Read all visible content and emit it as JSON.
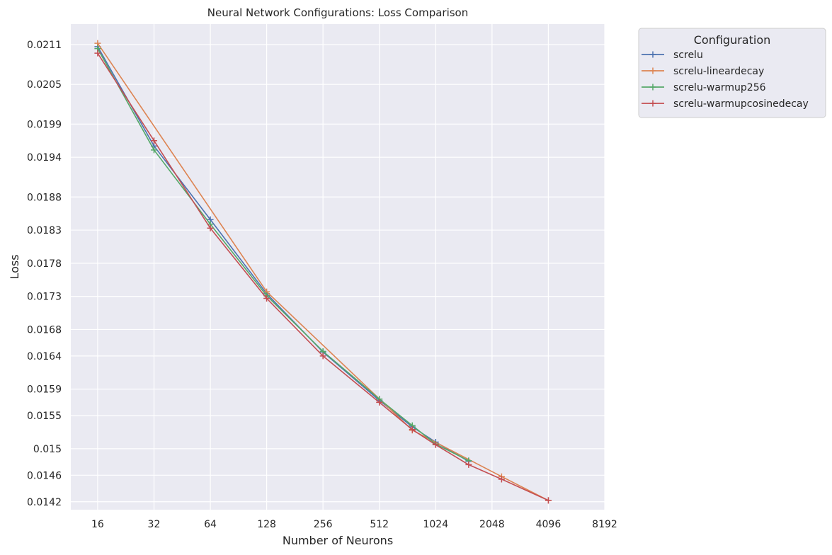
{
  "chart_data": {
    "type": "line",
    "title": "Neural Network Configurations: Loss Comparison",
    "xlabel": "Number of Neurons",
    "ylabel": "Loss",
    "xscale": "log2",
    "xlim": [
      11.5,
      8192
    ],
    "ylim": [
      0.01408,
      0.02141
    ],
    "x_ticks": [
      16,
      32,
      64,
      128,
      256,
      512,
      1024,
      2048,
      4096,
      8192
    ],
    "x_tick_labels": [
      "16",
      "32",
      "64",
      "128",
      "256",
      "512",
      "1024",
      "2048",
      "4096",
      "8192"
    ],
    "y_ticks": [
      0.0142,
      0.0146,
      0.015,
      0.0155,
      0.0159,
      0.0164,
      0.0168,
      0.0173,
      0.0178,
      0.0183,
      0.0188,
      0.0194,
      0.0199,
      0.0205,
      0.0211
    ],
    "y_tick_labels": [
      "0.0142",
      "0.0146",
      "0.015",
      "0.0155",
      "0.0159",
      "0.0164",
      "0.0168",
      "0.0173",
      "0.0178",
      "0.0183",
      "0.0188",
      "0.0194",
      "0.0199",
      "0.0205",
      "0.0211"
    ],
    "grid": true,
    "legend": {
      "title": "Configuration",
      "placement": "outside-top-right"
    },
    "series": [
      {
        "name": "screlu",
        "color": "#4c72b0",
        "x": [
          16,
          32,
          64,
          128,
          256,
          512,
          768,
          1024,
          1536
        ],
        "values": [
          0.02107,
          0.01957,
          0.01846,
          0.01734,
          0.01646,
          0.01573,
          0.01533,
          0.0151,
          0.01481
        ]
      },
      {
        "name": "screlu-lineardecay",
        "color": "#dd8452",
        "x": [
          16,
          128,
          768,
          2304,
          4096
        ],
        "values": [
          0.02112,
          0.01737,
          0.01528,
          0.01458,
          0.01422
        ]
      },
      {
        "name": "screlu-warmup256",
        "color": "#55a868",
        "x": [
          16,
          32,
          64,
          128,
          256,
          512,
          768,
          1024,
          1536
        ],
        "values": [
          0.02104,
          0.01951,
          0.01839,
          0.01731,
          0.01647,
          0.01575,
          0.01535,
          0.01507,
          0.01482
        ]
      },
      {
        "name": "screlu-warmupcosinedecay",
        "color": "#c44e52",
        "x": [
          16,
          32,
          64,
          128,
          256,
          512,
          768,
          1024,
          1536,
          2304,
          4096
        ],
        "values": [
          0.02097,
          0.01965,
          0.01833,
          0.01727,
          0.0164,
          0.0157,
          0.01529,
          0.01506,
          0.01476,
          0.01454,
          0.01422
        ]
      }
    ]
  }
}
